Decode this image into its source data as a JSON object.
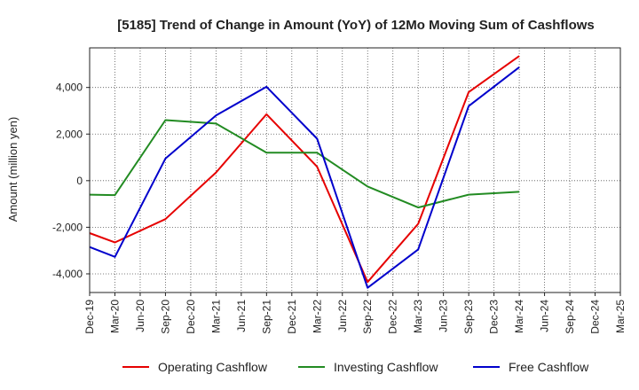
{
  "chart_data": {
    "type": "line",
    "title": "[5185]  Trend of Change in Amount (YoY) of 12Mo Moving Sum of Cashflows",
    "xlabel": "",
    "ylabel": "Amount (million yen)",
    "ylim": [
      -4800,
      5700
    ],
    "yticks": [
      4000,
      2000,
      0,
      -2000,
      -4000
    ],
    "ytick_labels": [
      "4,000",
      "2,000",
      "0",
      "-2,000",
      "-4,000"
    ],
    "categories": [
      "Dec-19",
      "Mar-20",
      "Jun-20",
      "Sep-20",
      "Dec-20",
      "Mar-21",
      "Jun-21",
      "Sep-21",
      "Dec-21",
      "Mar-22",
      "Jun-22",
      "Sep-22",
      "Dec-22",
      "Mar-23",
      "Jun-23",
      "Sep-23",
      "Dec-23",
      "Mar-24",
      "Jun-24",
      "Sep-24",
      "Dec-24",
      "Mar-25"
    ],
    "grid": true,
    "legend_position": "bottom",
    "series": [
      {
        "name": "Operating Cashflow",
        "color": "#e60000",
        "values": [
          -2250,
          -2650,
          null,
          -1650,
          null,
          350,
          null,
          2850,
          null,
          600,
          null,
          -4350,
          null,
          -1850,
          null,
          3800,
          null,
          5350,
          null,
          null,
          null,
          null
        ]
      },
      {
        "name": "Investing Cashflow",
        "color": "#228b22",
        "values": [
          -600,
          -620,
          null,
          2600,
          null,
          2450,
          null,
          1200,
          null,
          1200,
          null,
          -250,
          null,
          -1150,
          null,
          -600,
          null,
          -480,
          null,
          null,
          null,
          null
        ]
      },
      {
        "name": "Free Cashflow",
        "color": "#0000cc",
        "values": [
          -2850,
          -3270,
          null,
          950,
          null,
          2800,
          null,
          4030,
          null,
          1800,
          null,
          -4600,
          null,
          -2950,
          null,
          3200,
          null,
          4870,
          null,
          null,
          null,
          null
        ]
      }
    ]
  }
}
